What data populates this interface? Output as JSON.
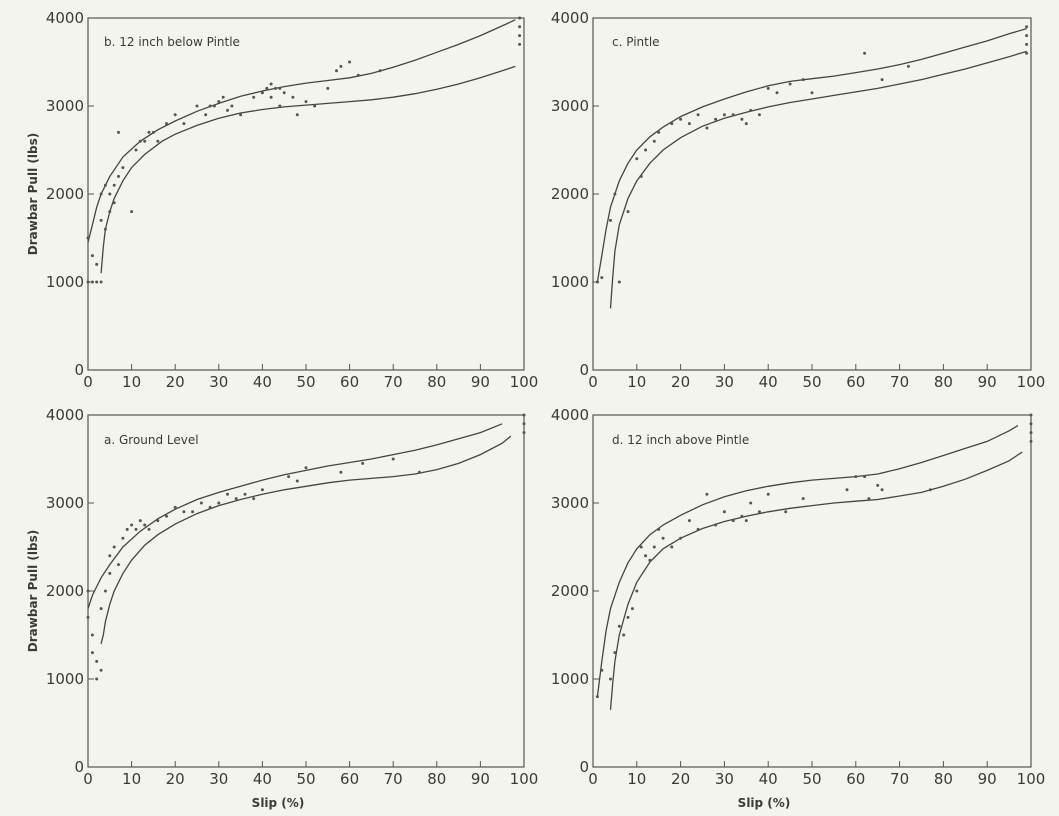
{
  "figure": {
    "ylabel": "Drawbar Pull (lbs)",
    "xlabel": "Slip (%)"
  },
  "chart_data": [
    {
      "type": "scatter",
      "title": "b. 12 inch below Pintle",
      "xlabel": "",
      "ylabel": "Drawbar Pull (lbs)",
      "xlim": [
        0,
        100
      ],
      "ylim": [
        0,
        4000
      ],
      "xticks": [
        "0",
        "10",
        "20",
        "30",
        "40",
        "50",
        "60",
        "70",
        "80",
        "90",
        "100"
      ],
      "yticks": [
        "0",
        "1000",
        "2000",
        "3000",
        "4000"
      ],
      "upper_curve": {
        "x": [
          0,
          1,
          2,
          3,
          5,
          8,
          12,
          16,
          20,
          25,
          30,
          35,
          40,
          45,
          50,
          55,
          60,
          65,
          70,
          75,
          80,
          85,
          90,
          95,
          98
        ],
        "y": [
          1450,
          1650,
          1850,
          2000,
          2200,
          2420,
          2600,
          2730,
          2830,
          2940,
          3030,
          3110,
          3170,
          3220,
          3260,
          3290,
          3320,
          3370,
          3440,
          3520,
          3610,
          3700,
          3800,
          3910,
          3980
        ]
      },
      "lower_curve": {
        "x": [
          3,
          3.5,
          4,
          5,
          6,
          8,
          10,
          13,
          17,
          20,
          25,
          30,
          35,
          40,
          45,
          50,
          55,
          60,
          65,
          70,
          75,
          80,
          85,
          90,
          95,
          98
        ],
        "y": [
          1100,
          1400,
          1600,
          1800,
          1950,
          2150,
          2300,
          2450,
          2600,
          2680,
          2780,
          2860,
          2920,
          2960,
          2990,
          3010,
          3030,
          3050,
          3070,
          3100,
          3140,
          3190,
          3250,
          3320,
          3400,
          3450
        ]
      },
      "points": {
        "x": [
          0,
          0,
          1,
          1,
          2,
          2,
          3,
          3,
          3,
          4,
          4,
          5,
          5,
          6,
          6,
          7,
          7,
          8,
          10,
          11,
          12,
          13,
          14,
          15,
          16,
          18,
          20,
          22,
          25,
          27,
          28,
          29,
          30,
          31,
          32,
          33,
          35,
          38,
          40,
          41,
          42,
          42,
          43,
          44,
          44,
          45,
          47,
          48,
          50,
          52,
          55,
          57,
          58,
          60,
          62,
          67,
          99,
          99,
          99,
          99
        ],
        "y": [
          1500,
          1000,
          1300,
          1000,
          1200,
          1000,
          1700,
          2000,
          1000,
          2100,
          1600,
          1800,
          2000,
          2100,
          1900,
          2700,
          2200,
          2300,
          1800,
          2500,
          2600,
          2600,
          2700,
          2700,
          2600,
          2800,
          2900,
          2800,
          3000,
          2900,
          3000,
          3000,
          3050,
          3100,
          2950,
          3000,
          2900,
          3100,
          3150,
          3200,
          3250,
          3100,
          3200,
          3200,
          3000,
          3150,
          3100,
          2900,
          3050,
          3000,
          3200,
          3400,
          3450,
          3500,
          3350,
          3400,
          4000,
          3900,
          3800,
          3700
        ]
      }
    },
    {
      "type": "scatter",
      "title": "c. Pintle",
      "xlabel": "",
      "ylabel": "",
      "xlim": [
        0,
        100
      ],
      "ylim": [
        0,
        4000
      ],
      "xticks": [
        "0",
        "10",
        "20",
        "30",
        "40",
        "50",
        "60",
        "70",
        "80",
        "90",
        "100"
      ],
      "yticks": [
        "0",
        "1000",
        "2000",
        "3000",
        "4000"
      ],
      "upper_curve": {
        "x": [
          1,
          2,
          3,
          4,
          6,
          8,
          10,
          13,
          16,
          20,
          25,
          30,
          35,
          40,
          45,
          50,
          55,
          60,
          65,
          70,
          75,
          80,
          85,
          90,
          95,
          99
        ],
        "y": [
          1000,
          1300,
          1600,
          1850,
          2150,
          2350,
          2500,
          2650,
          2760,
          2880,
          2990,
          3080,
          3160,
          3230,
          3280,
          3310,
          3340,
          3380,
          3420,
          3470,
          3530,
          3600,
          3670,
          3740,
          3820,
          3880
        ]
      },
      "lower_curve": {
        "x": [
          4,
          4.5,
          5,
          6,
          8,
          10,
          13,
          16,
          20,
          25,
          30,
          35,
          40,
          45,
          50,
          55,
          60,
          65,
          70,
          75,
          80,
          85,
          90,
          95,
          99
        ],
        "y": [
          700,
          1050,
          1350,
          1650,
          1950,
          2150,
          2350,
          2500,
          2640,
          2770,
          2860,
          2930,
          2990,
          3040,
          3080,
          3120,
          3160,
          3200,
          3250,
          3300,
          3360,
          3420,
          3490,
          3560,
          3620
        ]
      },
      "points": {
        "x": [
          1,
          2,
          4,
          5,
          6,
          8,
          10,
          11,
          12,
          14,
          15,
          18,
          20,
          22,
          24,
          26,
          28,
          30,
          32,
          34,
          35,
          36,
          38,
          40,
          42,
          45,
          48,
          50,
          62,
          66,
          72,
          99,
          99,
          99,
          99
        ],
        "y": [
          1000,
          1050,
          1700,
          2000,
          1000,
          1800,
          2400,
          2200,
          2500,
          2600,
          2700,
          2800,
          2850,
          2800,
          2900,
          2750,
          2850,
          2900,
          2900,
          2850,
          2800,
          2950,
          2900,
          3200,
          3150,
          3250,
          3300,
          3150,
          3600,
          3300,
          3450,
          3900,
          3800,
          3700,
          3600
        ]
      }
    },
    {
      "type": "scatter",
      "title": "a. Ground Level",
      "xlabel": "Slip (%)",
      "ylabel": "Drawbar Pull (lbs)",
      "xlim": [
        0,
        100
      ],
      "ylim": [
        0,
        4000
      ],
      "xticks": [
        "0",
        "10",
        "20",
        "30",
        "40",
        "50",
        "60",
        "70",
        "80",
        "90",
        "100"
      ],
      "yticks": [
        "0",
        "1000",
        "2000",
        "3000",
        "4000"
      ],
      "upper_curve": {
        "x": [
          0,
          1,
          2,
          3,
          5,
          8,
          12,
          16,
          20,
          25,
          30,
          35,
          40,
          45,
          50,
          55,
          60,
          65,
          70,
          75,
          80,
          85,
          90,
          95
        ],
        "y": [
          1800,
          1950,
          2050,
          2150,
          2300,
          2500,
          2680,
          2820,
          2930,
          3040,
          3120,
          3190,
          3260,
          3320,
          3370,
          3420,
          3460,
          3500,
          3550,
          3600,
          3660,
          3730,
          3800,
          3900
        ]
      },
      "lower_curve": {
        "x": [
          3,
          3.5,
          4,
          5,
          6,
          8,
          10,
          13,
          16,
          20,
          25,
          30,
          35,
          40,
          45,
          50,
          55,
          60,
          65,
          70,
          75,
          80,
          85,
          90,
          95,
          97
        ],
        "y": [
          1400,
          1500,
          1650,
          1850,
          2000,
          2200,
          2350,
          2520,
          2640,
          2760,
          2880,
          2970,
          3040,
          3100,
          3150,
          3190,
          3230,
          3260,
          3280,
          3300,
          3330,
          3380,
          3450,
          3550,
          3680,
          3760
        ]
      },
      "points": {
        "x": [
          0,
          0,
          1,
          1,
          2,
          2,
          3,
          3,
          4,
          5,
          5,
          6,
          7,
          8,
          9,
          10,
          11,
          12,
          13,
          14,
          16,
          18,
          20,
          22,
          24,
          26,
          28,
          30,
          32,
          34,
          36,
          38,
          40,
          46,
          48,
          50,
          58,
          63,
          70,
          76,
          100,
          100,
          100
        ],
        "y": [
          2000,
          1700,
          1500,
          1300,
          1200,
          1000,
          1100,
          1800,
          2000,
          2200,
          2400,
          2500,
          2300,
          2600,
          2700,
          2750,
          2700,
          2800,
          2750,
          2700,
          2800,
          2850,
          2950,
          2900,
          2900,
          3000,
          2950,
          3000,
          3100,
          3050,
          3100,
          3050,
          3150,
          3300,
          3250,
          3400,
          3350,
          3450,
          3500,
          3350,
          4000,
          3900,
          3800
        ]
      }
    },
    {
      "type": "scatter",
      "title": "d. 12 inch above Pintle",
      "xlabel": "Slip (%)",
      "ylabel": "",
      "xlim": [
        0,
        100
      ],
      "ylim": [
        0,
        4000
      ],
      "xticks": [
        "0",
        "10",
        "20",
        "30",
        "40",
        "50",
        "60",
        "70",
        "80",
        "90",
        "100"
      ],
      "yticks": [
        "0",
        "1000",
        "2000",
        "3000",
        "4000"
      ],
      "upper_curve": {
        "x": [
          1,
          2,
          3,
          4,
          6,
          8,
          10,
          13,
          16,
          20,
          25,
          30,
          35,
          40,
          45,
          50,
          55,
          60,
          65,
          70,
          75,
          80,
          85,
          90,
          95,
          97
        ],
        "y": [
          800,
          1200,
          1550,
          1800,
          2100,
          2320,
          2480,
          2640,
          2750,
          2860,
          2980,
          3070,
          3140,
          3190,
          3230,
          3260,
          3280,
          3300,
          3330,
          3390,
          3460,
          3540,
          3620,
          3700,
          3820,
          3880
        ]
      },
      "lower_curve": {
        "x": [
          4,
          4.5,
          5,
          6,
          8,
          10,
          13,
          16,
          20,
          25,
          30,
          35,
          40,
          45,
          50,
          55,
          60,
          65,
          70,
          75,
          80,
          85,
          90,
          95,
          98
        ],
        "y": [
          650,
          950,
          1200,
          1500,
          1850,
          2100,
          2330,
          2480,
          2600,
          2710,
          2790,
          2850,
          2900,
          2940,
          2970,
          3000,
          3020,
          3040,
          3080,
          3120,
          3190,
          3270,
          3370,
          3480,
          3580
        ]
      },
      "points": {
        "x": [
          1,
          2,
          4,
          5,
          6,
          7,
          8,
          9,
          10,
          11,
          12,
          13,
          14,
          15,
          16,
          18,
          20,
          22,
          24,
          26,
          28,
          30,
          32,
          34,
          35,
          36,
          38,
          40,
          44,
          48,
          58,
          60,
          62,
          63,
          65,
          66,
          77,
          100,
          100,
          100,
          100
        ],
        "y": [
          800,
          1100,
          1000,
          1300,
          1600,
          1500,
          1700,
          1800,
          2000,
          2500,
          2400,
          2350,
          2500,
          2700,
          2600,
          2500,
          2600,
          2800,
          2700,
          3100,
          2750,
          2900,
          2800,
          2850,
          2800,
          3000,
          2900,
          3100,
          2900,
          3050,
          3150,
          3300,
          3300,
          3050,
          3200,
          3150,
          3150,
          4000,
          3900,
          3800,
          3700
        ]
      }
    }
  ]
}
